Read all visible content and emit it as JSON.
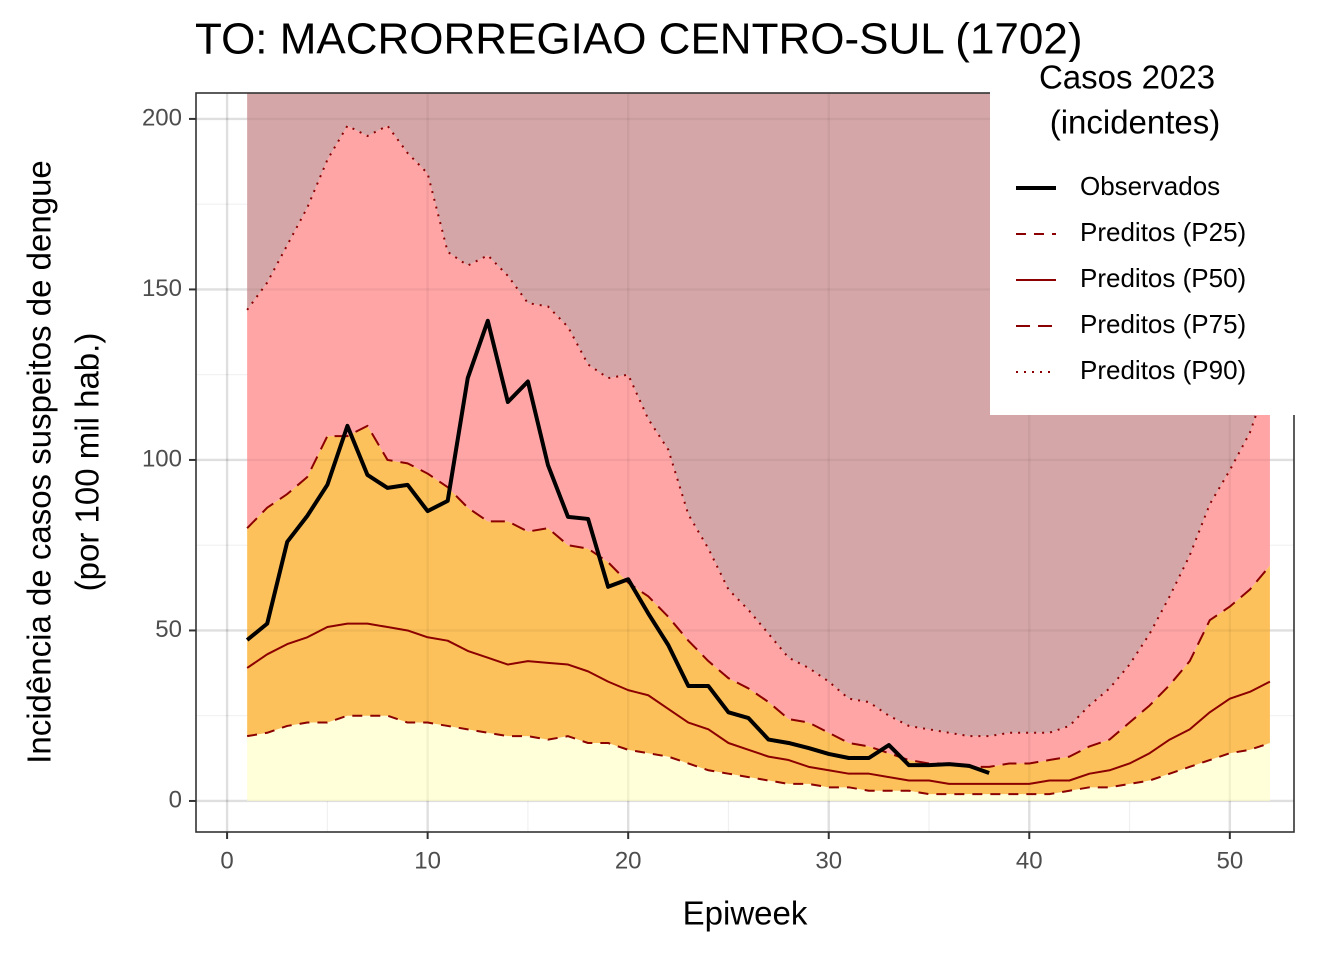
{
  "chart_data": {
    "type": "line",
    "title": "TO: MACRORREGIAO CENTRO-SUL (1702)",
    "xlabel": "Epiweek",
    "ylabel": [
      "Incidência de casos suspeitos de dengue",
      "(por 100 mil hab.)"
    ],
    "legend_title": [
      "Casos 2023",
      "(incidentes)"
    ],
    "legend_position": "top-right",
    "grid": true,
    "xlim": [
      -1.55,
      53.2
    ],
    "ylim": [
      -9.1,
      207.6
    ],
    "xticks": [
      0,
      10,
      20,
      30,
      40,
      50
    ],
    "yticks": [
      0,
      50,
      100,
      150,
      200
    ],
    "band_colors": [
      "#ffffd9",
      "#fdc15b",
      "#ffa5a6",
      "#d5a6a8"
    ],
    "x": [
      1,
      2,
      3,
      4,
      5,
      6,
      7,
      8,
      9,
      10,
      11,
      12,
      13,
      14,
      15,
      16,
      17,
      18,
      19,
      20,
      21,
      22,
      23,
      24,
      25,
      26,
      27,
      28,
      29,
      30,
      31,
      32,
      33,
      34,
      35,
      36,
      37,
      38,
      39,
      40,
      41,
      42,
      43,
      44,
      45,
      46,
      47,
      48,
      49,
      50,
      51,
      52
    ],
    "series": [
      {
        "name": "Observados",
        "color": "#000000",
        "dash": "solid",
        "width": 4,
        "values": [
          47.2,
          52,
          76,
          83.6,
          92.7,
          110,
          95.6,
          91.8,
          92.7,
          85,
          88,
          124,
          140.8,
          117,
          123,
          98.5,
          83.3,
          82.7,
          62.8,
          65,
          55,
          45.7,
          33.7,
          33.7,
          26,
          24.3,
          18,
          17,
          15.5,
          13.8,
          12.6,
          12.6,
          16.4,
          10.5,
          10.5,
          10.8,
          10.3,
          8.2,
          null,
          null,
          null,
          null,
          null,
          null,
          null,
          null,
          null,
          null,
          null,
          null,
          null,
          null
        ]
      },
      {
        "name": "Preditos (P25)",
        "color": "#8b0000",
        "dash": "dashed",
        "width": 2,
        "values": [
          19,
          20,
          22,
          23,
          23,
          25,
          25,
          25,
          23,
          23,
          22,
          21,
          20,
          19,
          19,
          18,
          19,
          17,
          17,
          15,
          14,
          13,
          11,
          9,
          8,
          7,
          6,
          5,
          5,
          4,
          4,
          3,
          3,
          3,
          2,
          2,
          2,
          2,
          2,
          2,
          2,
          3,
          4,
          4,
          5,
          6,
          8,
          10,
          12,
          14,
          15,
          17
        ]
      },
      {
        "name": "Preditos (P50)",
        "color": "#8b0000",
        "dash": "solid",
        "width": 2,
        "values": [
          39,
          43,
          46,
          48,
          51,
          52,
          52,
          51,
          50,
          48,
          47,
          44,
          42,
          40,
          41,
          40.5,
          40,
          38,
          35,
          32.5,
          31,
          27,
          23,
          21,
          17,
          15,
          13,
          12,
          10,
          9,
          8,
          8,
          7,
          6,
          6,
          5,
          5,
          5,
          5,
          5,
          6,
          6,
          8,
          9,
          11,
          14,
          18,
          21,
          26,
          30,
          32,
          35
        ]
      },
      {
        "name": "Preditos (P75)",
        "color": "#8b0000",
        "dash": "longdash",
        "width": 2,
        "values": [
          80,
          86,
          90,
          95,
          107,
          107,
          110,
          100,
          99,
          96,
          92,
          86,
          82,
          82,
          79,
          80,
          75,
          74,
          70,
          64,
          60,
          54,
          47,
          41,
          36,
          33,
          29,
          24,
          23,
          20,
          17,
          16,
          14,
          12,
          11,
          11,
          10,
          10,
          11,
          11,
          12,
          13,
          16,
          18,
          23,
          28,
          34,
          41,
          53,
          57,
          62,
          69
        ]
      },
      {
        "name": "Preditos (P90)",
        "color": "#8b0000",
        "dash": "dotted",
        "width": 2,
        "values": [
          144,
          152,
          163,
          174,
          188,
          198,
          195,
          198,
          190,
          184,
          161,
          157,
          160,
          154,
          146,
          145,
          139,
          128,
          124,
          125,
          112,
          103,
          84,
          74,
          62,
          56,
          49,
          42,
          39,
          35,
          30,
          29,
          25,
          22,
          21,
          20,
          19,
          19,
          20,
          20,
          20,
          22,
          28,
          33,
          40,
          49,
          60,
          72,
          87,
          97,
          108,
          125
        ]
      }
    ]
  }
}
